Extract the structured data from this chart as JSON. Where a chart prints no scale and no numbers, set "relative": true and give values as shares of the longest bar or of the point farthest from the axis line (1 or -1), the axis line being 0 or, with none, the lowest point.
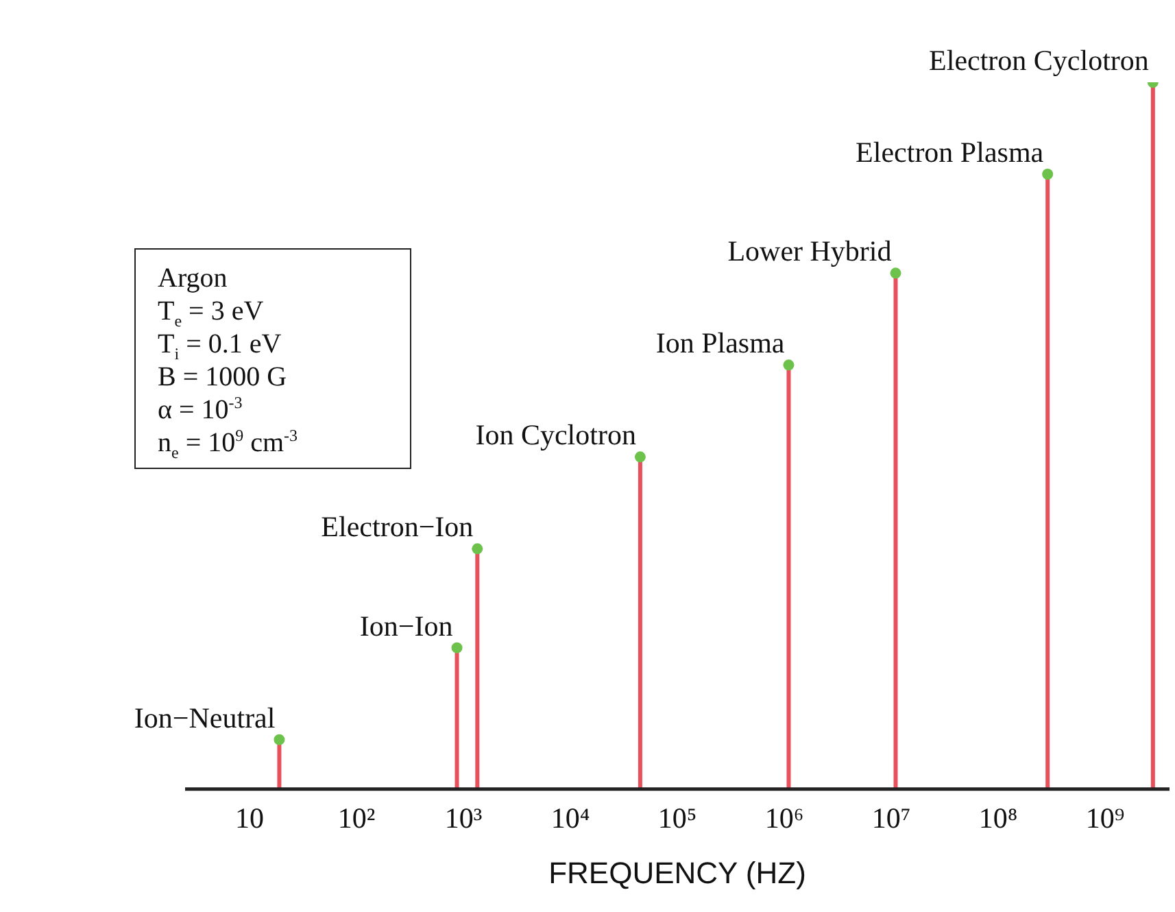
{
  "chart_data": {
    "type": "lollipop",
    "relative": true,
    "log": "x",
    "xlabel": "FREQUENCY (HZ)",
    "x": [
      19,
      870,
      1350,
      45000,
      1100000,
      11000000,
      290000000,
      2800000000
    ],
    "values": [
      0.07,
      0.2,
      0.34,
      0.47,
      0.6,
      0.73,
      0.87,
      1.0
    ],
    "color": "#6cc24a",
    "marker": "circle",
    "grid": false,
    "legend": false,
    "xlim": [
      2.5,
      4000000000
    ],
    "xticks": [
      10,
      {
        "value": 100,
        "label": "10²"
      },
      {
        "value": 1000,
        "label": "10³"
      },
      {
        "value": 10000,
        "label": "10⁴"
      },
      {
        "value": 100000,
        "label": "10⁵"
      },
      {
        "value": 1000000,
        "label": "10⁶"
      },
      {
        "value": 10000000,
        "label": "10⁷"
      },
      {
        "value": 100000000,
        "label": "10⁸"
      },
      {
        "value": 1000000000,
        "label": "10⁹"
      }
    ],
    "annotations": [
      {
        "text": "Ion−Neutral",
        "x": 19,
        "y": 0.07
      },
      {
        "text": "Ion−Ion",
        "x": 870,
        "y": 0.2
      },
      {
        "text": "Electron−Ion",
        "x": 1350,
        "y": 0.34
      },
      {
        "text": "Ion Cyclotron",
        "x": 45000,
        "y": 0.47
      },
      {
        "text": "Ion Plasma",
        "x": 1100000,
        "y": 0.6
      },
      {
        "text": "Lower Hybrid",
        "x": 11000000,
        "y": 0.73
      },
      {
        "text": "Electron Plasma",
        "x": 290000000,
        "y": 0.87
      },
      {
        "text": "Electron Cyclotron",
        "x": 2800000000,
        "y": 1.0
      },
      "Argon",
      "T$_{e}$ = 3 eV",
      "T$_{i}$ = 0.1 eV",
      "B = 1000 G",
      "α = 10$^{-3}$",
      "n$_{e}$ = 10$^{9}$ cm$^{-3}$"
    ]
  }
}
